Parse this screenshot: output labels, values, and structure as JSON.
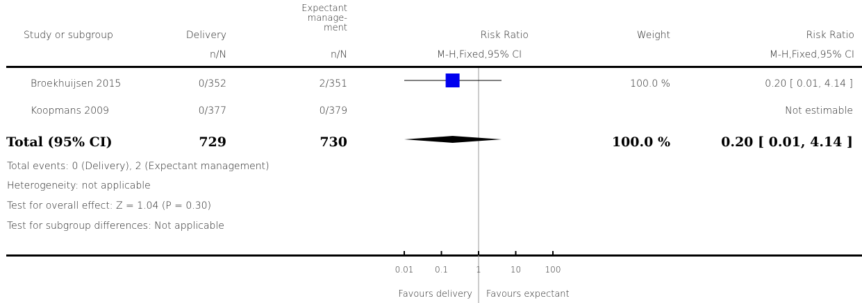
{
  "header": {
    "col_study": "Study or subgroup",
    "col_delivery": "Delivery",
    "col_expectant": [
      "Expectant",
      "manage-",
      "ment"
    ],
    "col_rr": "Risk Ratio",
    "col_weight": "Weight",
    "col_rr2": "Risk Ratio",
    "sub_delivery": "n/N",
    "sub_expectant": "n/N",
    "sub_rr": "M-H,Fixed,95% CI",
    "sub_rr2": "M-H,Fixed,95% CI"
  },
  "rows": [
    {
      "study": "Broekhuijsen 2015",
      "delivery": "0/352",
      "expectant": "2/351",
      "weight": "100.0 %",
      "rr": "0.20 [ 0.01, 4.14 ]"
    },
    {
      "study": "Koopmans 2009",
      "delivery": "0/377",
      "expectant": "0/379",
      "weight": "",
      "rr": "Not estimable"
    }
  ],
  "total": {
    "label": "Total (95% CI)",
    "delivery": "729",
    "expectant": "730",
    "weight": "100.0 %",
    "rr": "0.20 [ 0.01, 4.14 ]"
  },
  "footnotes": {
    "events": "Total events: 0 (Delivery), 2 (Expectant management)",
    "heterogeneity": "Heterogeneity: not applicable",
    "overall": "Test for overall effect: Z = 1.04 (P = 0.30)",
    "subgroup": "Test for subgroup differences: Not applicable"
  },
  "axis": {
    "favours_left": "Favours delivery",
    "favours_right": "Favours expectant"
  },
  "chart_data": {
    "type": "forest",
    "scale": "log",
    "xlim": [
      0.01,
      100
    ],
    "ticks": [
      {
        "value": 0.01,
        "label": "0.01"
      },
      {
        "value": 0.1,
        "label": "0.1"
      },
      {
        "value": 1,
        "label": "1"
      },
      {
        "value": 10,
        "label": "10"
      },
      {
        "value": 100,
        "label": "100"
      }
    ],
    "studies": [
      {
        "name": "Broekhuijsen 2015",
        "estimate": 0.2,
        "lower": 0.01,
        "upper": 4.14,
        "weight": 100.0
      }
    ],
    "pooled": {
      "estimate": 0.2,
      "lower": 0.01,
      "upper": 4.14
    },
    "colors": {
      "study_marker": "#0000ee",
      "diamond": "#000000",
      "line": "#000000"
    }
  }
}
